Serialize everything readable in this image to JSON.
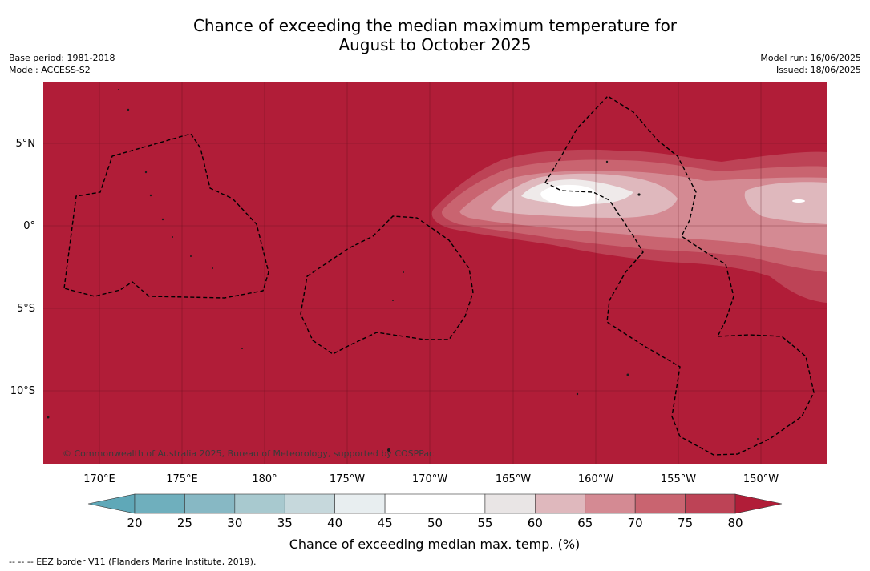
{
  "title_line1": "Chance of exceeding the median maximum temperature for",
  "title_line2": "August to October 2025",
  "meta_left": {
    "base_period": "Base period: 1981-2018",
    "model": "Model: ACCESS-S2"
  },
  "meta_right": {
    "model_run": "Model run: 16/06/2025",
    "issued": "Issued: 18/06/2025"
  },
  "map": {
    "background_color": "#b11d38",
    "latitude_labels": [
      "5°N",
      "0°",
      "5°S",
      "10°S"
    ],
    "longitude_labels": [
      "170°E",
      "175°E",
      "180°",
      "175°W",
      "170°W",
      "165°W",
      "160°W",
      "155°W",
      "150°W"
    ],
    "copyright": "© Commonwealth of Australia 2025, Bureau of Meteorology, supported by COSPPac"
  },
  "colorbar": {
    "ticks": [
      "20",
      "25",
      "30",
      "35",
      "40",
      "45",
      "50",
      "55",
      "60",
      "65",
      "70",
      "75",
      "80"
    ],
    "colors": [
      "#5fa8b8",
      "#6fafbd",
      "#87b8c4",
      "#a8c9cf",
      "#c6d8dc",
      "#e8eef0",
      "#ffffff",
      "#ffffff",
      "#e9e5e5",
      "#dfb8bd",
      "#d48a93",
      "#c96470",
      "#bd4356",
      "#b11d38"
    ],
    "title": "Chance of exceeding median max. temp. (%)"
  },
  "footer": "--  --  -- EEZ border V11 (Flanders Marine Institute, 2019)."
}
